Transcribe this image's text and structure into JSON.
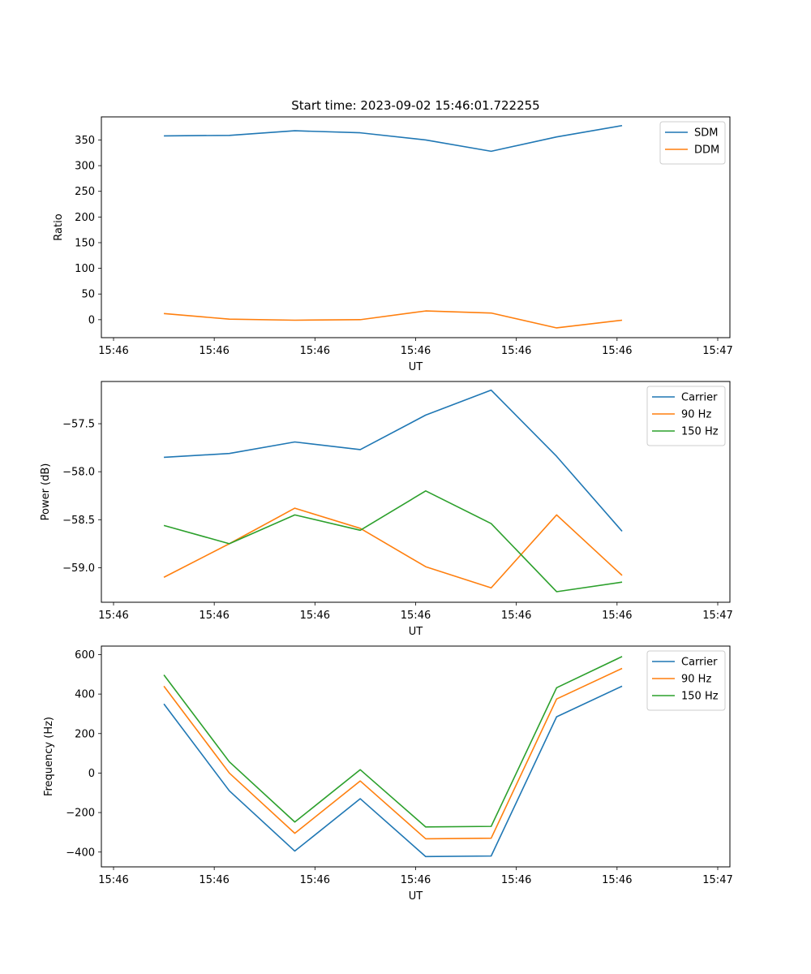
{
  "figure_title": "Start time: 2023-09-02 15:46:01.722255",
  "colors": {
    "c0": "#1f77b4",
    "c1": "#ff7f0e",
    "c2": "#2ca02c"
  },
  "chart_data": [
    {
      "type": "line",
      "title": "Start time: 2023-09-02 15:46:01.722255",
      "xlabel": "UT",
      "ylabel": "Ratio",
      "x": [
        0.5,
        1.15,
        1.8,
        2.45,
        3.1,
        3.75,
        4.4,
        5.05
      ],
      "xlim": [
        0,
        6
      ],
      "ylim": [
        -35,
        395
      ],
      "xticks": [
        0,
        1,
        2,
        3,
        4,
        5,
        6
      ],
      "xtick_labels": [
        "15:46",
        "15:46",
        "15:46",
        "15:46",
        "15:46",
        "15:46",
        "15:47"
      ],
      "yticks": [
        0,
        50,
        100,
        150,
        200,
        250,
        300,
        350
      ],
      "ytick_labels": [
        "0",
        "50",
        "100",
        "150",
        "200",
        "250",
        "300",
        "350"
      ],
      "legend_position": "top-right",
      "series": [
        {
          "name": "SDM",
          "color": "#1f77b4",
          "values": [
            358,
            359,
            368,
            364,
            350,
            328,
            356,
            378
          ]
        },
        {
          "name": "DDM",
          "color": "#ff7f0e",
          "values": [
            12,
            1,
            -1,
            0,
            17,
            13,
            -16,
            -1
          ]
        }
      ]
    },
    {
      "type": "line",
      "title": "",
      "xlabel": "UT",
      "ylabel": "Power (dB)",
      "x": [
        0.5,
        1.15,
        1.8,
        2.45,
        3.1,
        3.75,
        4.4,
        5.05
      ],
      "xlim": [
        0,
        6
      ],
      "ylim": [
        -59.36,
        -57.06
      ],
      "xticks": [
        0,
        1,
        2,
        3,
        4,
        5,
        6
      ],
      "xtick_labels": [
        "15:46",
        "15:46",
        "15:46",
        "15:46",
        "15:46",
        "15:46",
        "15:47"
      ],
      "yticks": [
        -59.0,
        -58.5,
        -58.0,
        -57.5
      ],
      "ytick_labels": [
        "−59.0",
        "−58.5",
        "−58.0",
        "−57.5"
      ],
      "legend_position": "top-right",
      "series": [
        {
          "name": "Carrier",
          "color": "#1f77b4",
          "values": [
            -57.85,
            -57.81,
            -57.69,
            -57.77,
            -57.41,
            -57.15,
            -57.84,
            -58.62
          ]
        },
        {
          "name": "90 Hz",
          "color": "#ff7f0e",
          "values": [
            -59.1,
            -58.75,
            -58.38,
            -58.59,
            -58.99,
            -59.21,
            -58.45,
            -59.08
          ]
        },
        {
          "name": "150 Hz",
          "color": "#2ca02c",
          "values": [
            -58.56,
            -58.75,
            -58.45,
            -58.61,
            -58.2,
            -58.54,
            -59.25,
            -59.15
          ]
        }
      ]
    },
    {
      "type": "line",
      "title": "",
      "xlabel": "UT",
      "ylabel": "Frequency (Hz)",
      "x": [
        0.5,
        1.15,
        1.8,
        2.45,
        3.1,
        3.75,
        4.4,
        5.05
      ],
      "xlim": [
        0,
        6
      ],
      "ylim": [
        -475,
        643
      ],
      "xticks": [
        0,
        1,
        2,
        3,
        4,
        5,
        6
      ],
      "xtick_labels": [
        "15:46",
        "15:46",
        "15:46",
        "15:46",
        "15:46",
        "15:46",
        "15:47"
      ],
      "yticks": [
        -400,
        -200,
        0,
        200,
        400,
        600
      ],
      "ytick_labels": [
        "−400",
        "−200",
        "0",
        "200",
        "400",
        "600"
      ],
      "legend_position": "top-right",
      "series": [
        {
          "name": "Carrier",
          "color": "#1f77b4",
          "values": [
            350,
            -90,
            -395,
            -130,
            -423,
            -420,
            285,
            440
          ]
        },
        {
          "name": "90 Hz",
          "color": "#ff7f0e",
          "values": [
            440,
            0,
            -305,
            -40,
            -333,
            -330,
            375,
            530
          ]
        },
        {
          "name": "150 Hz",
          "color": "#2ca02c",
          "values": [
            497,
            57,
            -248,
            17,
            -273,
            -270,
            432,
            590
          ]
        }
      ]
    }
  ]
}
